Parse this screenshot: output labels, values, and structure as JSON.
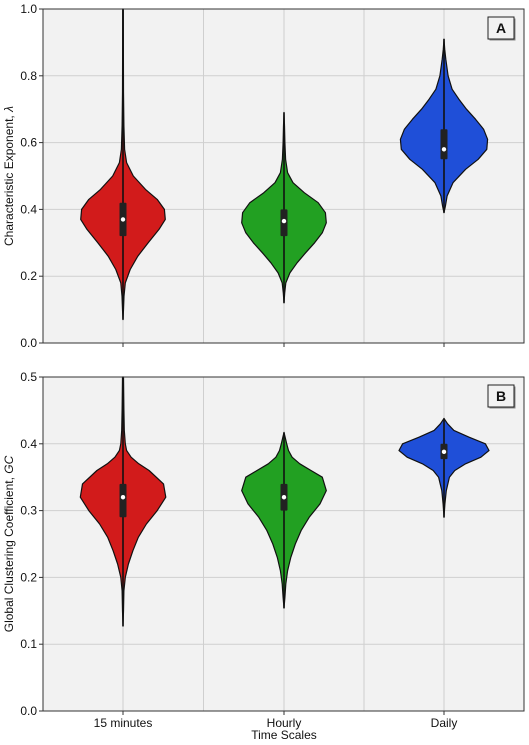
{
  "chart_data": [
    {
      "type": "violin",
      "panel_label": "A",
      "ylabel": "Characteristic Exponent, λ",
      "ylim": [
        0.0,
        1.0
      ],
      "yticks": [
        "0.0",
        "0.2",
        "0.4",
        "0.6",
        "0.8",
        "1.0"
      ],
      "categories": [
        "15 minutes",
        "Hourly",
        "Daily"
      ],
      "grid": true,
      "series": [
        {
          "color": "#d21b1b",
          "min": 0.07,
          "max": 1.0,
          "q1": 0.32,
          "median": 0.37,
          "q3": 0.42,
          "profile": [
            [
              0.07,
              0.0
            ],
            [
              0.1,
              0.012
            ],
            [
              0.14,
              0.022
            ],
            [
              0.18,
              0.05
            ],
            [
              0.22,
              0.16
            ],
            [
              0.26,
              0.33
            ],
            [
              0.3,
              0.56
            ],
            [
              0.34,
              0.8
            ],
            [
              0.37,
              0.94
            ],
            [
              0.4,
              0.92
            ],
            [
              0.43,
              0.76
            ],
            [
              0.46,
              0.5
            ],
            [
              0.5,
              0.23
            ],
            [
              0.54,
              0.08
            ],
            [
              0.58,
              0.035
            ],
            [
              0.65,
              0.02
            ],
            [
              0.75,
              0.012
            ],
            [
              0.85,
              0.008
            ],
            [
              1.0,
              0.006
            ]
          ]
        },
        {
          "color": "#22a022",
          "min": 0.12,
          "max": 0.69,
          "q1": 0.32,
          "median": 0.365,
          "q3": 0.4,
          "profile": [
            [
              0.12,
              0.0
            ],
            [
              0.15,
              0.015
            ],
            [
              0.18,
              0.04
            ],
            [
              0.21,
              0.13
            ],
            [
              0.24,
              0.29
            ],
            [
              0.27,
              0.48
            ],
            [
              0.3,
              0.68
            ],
            [
              0.33,
              0.85
            ],
            [
              0.36,
              0.94
            ],
            [
              0.39,
              0.92
            ],
            [
              0.42,
              0.76
            ],
            [
              0.45,
              0.45
            ],
            [
              0.48,
              0.2
            ],
            [
              0.51,
              0.08
            ],
            [
              0.55,
              0.035
            ],
            [
              0.6,
              0.02
            ],
            [
              0.65,
              0.012
            ],
            [
              0.69,
              0.0
            ]
          ]
        },
        {
          "color": "#1f4fd8",
          "min": 0.39,
          "max": 0.91,
          "q1": 0.55,
          "median": 0.58,
          "q3": 0.64,
          "profile": [
            [
              0.39,
              0.0
            ],
            [
              0.41,
              0.03
            ],
            [
              0.44,
              0.07
            ],
            [
              0.48,
              0.2
            ],
            [
              0.52,
              0.48
            ],
            [
              0.55,
              0.76
            ],
            [
              0.58,
              0.95
            ],
            [
              0.61,
              0.97
            ],
            [
              0.64,
              0.88
            ],
            [
              0.67,
              0.7
            ],
            [
              0.7,
              0.5
            ],
            [
              0.73,
              0.33
            ],
            [
              0.76,
              0.18
            ],
            [
              0.8,
              0.09
            ],
            [
              0.85,
              0.04
            ],
            [
              0.88,
              0.015
            ],
            [
              0.91,
              0.0
            ]
          ]
        }
      ]
    },
    {
      "type": "violin",
      "panel_label": "B",
      "ylabel": "Global Clustering Coefficient, GC",
      "xlabel": "Time Scales",
      "ylim": [
        0.0,
        0.5
      ],
      "yticks": [
        "0.0",
        "0.1",
        "0.2",
        "0.3",
        "0.4",
        "0.5"
      ],
      "categories": [
        "15 minutes",
        "Hourly",
        "Daily"
      ],
      "grid": true,
      "series": [
        {
          "color": "#d21b1b",
          "min": 0.127,
          "max": 0.5,
          "q1": 0.29,
          "median": 0.32,
          "q3": 0.34,
          "profile": [
            [
              0.127,
              0.0
            ],
            [
              0.15,
              0.01
            ],
            [
              0.18,
              0.02
            ],
            [
              0.2,
              0.05
            ],
            [
              0.22,
              0.12
            ],
            [
              0.24,
              0.22
            ],
            [
              0.26,
              0.34
            ],
            [
              0.28,
              0.52
            ],
            [
              0.3,
              0.76
            ],
            [
              0.32,
              0.95
            ],
            [
              0.34,
              0.9
            ],
            [
              0.36,
              0.58
            ],
            [
              0.37,
              0.35
            ],
            [
              0.38,
              0.18
            ],
            [
              0.39,
              0.08
            ],
            [
              0.4,
              0.05
            ],
            [
              0.42,
              0.03
            ],
            [
              0.45,
              0.02
            ],
            [
              0.5,
              0.01
            ]
          ]
        },
        {
          "color": "#22a022",
          "min": 0.154,
          "max": 0.417,
          "q1": 0.3,
          "median": 0.32,
          "q3": 0.34,
          "profile": [
            [
              0.154,
              0.0
            ],
            [
              0.17,
              0.02
            ],
            [
              0.19,
              0.04
            ],
            [
              0.21,
              0.08
            ],
            [
              0.23,
              0.15
            ],
            [
              0.25,
              0.25
            ],
            [
              0.27,
              0.38
            ],
            [
              0.29,
              0.56
            ],
            [
              0.31,
              0.8
            ],
            [
              0.33,
              0.94
            ],
            [
              0.35,
              0.85
            ],
            [
              0.36,
              0.6
            ],
            [
              0.37,
              0.35
            ],
            [
              0.38,
              0.18
            ],
            [
              0.39,
              0.1
            ],
            [
              0.4,
              0.06
            ],
            [
              0.417,
              0.0
            ]
          ]
        },
        {
          "color": "#1f4fd8",
          "min": 0.29,
          "max": 0.438,
          "q1": 0.377,
          "median": 0.388,
          "q3": 0.4,
          "profile": [
            [
              0.29,
              0.0
            ],
            [
              0.31,
              0.02
            ],
            [
              0.33,
              0.05
            ],
            [
              0.35,
              0.12
            ],
            [
              0.36,
              0.24
            ],
            [
              0.37,
              0.48
            ],
            [
              0.38,
              0.82
            ],
            [
              0.39,
              1.0
            ],
            [
              0.4,
              0.92
            ],
            [
              0.41,
              0.55
            ],
            [
              0.42,
              0.22
            ],
            [
              0.43,
              0.08
            ],
            [
              0.438,
              0.0
            ]
          ]
        }
      ]
    }
  ]
}
